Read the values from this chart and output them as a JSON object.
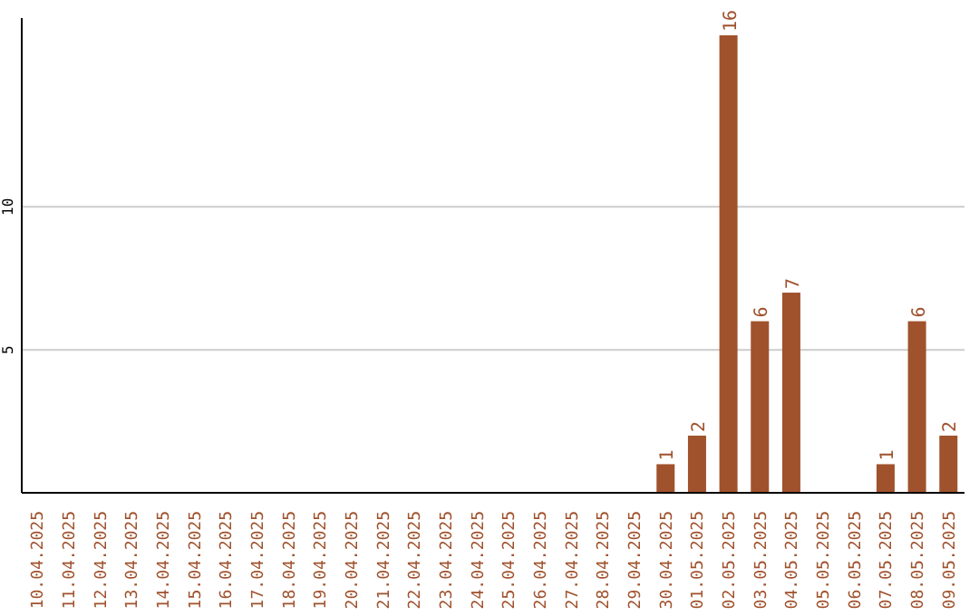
{
  "chart_data": {
    "type": "bar",
    "categories": [
      "10.04.2025",
      "11.04.2025",
      "12.04.2025",
      "13.04.2025",
      "14.04.2025",
      "15.04.2025",
      "16.04.2025",
      "17.04.2025",
      "18.04.2025",
      "19.04.2025",
      "20.04.2025",
      "21.04.2025",
      "22.04.2025",
      "23.04.2025",
      "24.04.2025",
      "25.04.2025",
      "26.04.2025",
      "27.04.2025",
      "28.04.2025",
      "29.04.2025",
      "30.04.2025",
      "01.05.2025",
      "02.05.2025",
      "03.05.2025",
      "04.05.2025",
      "05.05.2025",
      "06.05.2025",
      "07.05.2025",
      "08.05.2025",
      "09.05.2025"
    ],
    "values": [
      0,
      0,
      0,
      0,
      0,
      0,
      0,
      0,
      0,
      0,
      0,
      0,
      0,
      0,
      0,
      0,
      0,
      0,
      0,
      0,
      1,
      2,
      16,
      6,
      7,
      0,
      0,
      1,
      6,
      2
    ],
    "value_labels": [
      null,
      null,
      null,
      null,
      null,
      null,
      null,
      null,
      null,
      null,
      null,
      null,
      null,
      null,
      null,
      null,
      null,
      null,
      null,
      null,
      "1",
      "2",
      "16",
      "6",
      "7",
      null,
      null,
      "1",
      "6",
      "2"
    ],
    "color": "#a0522d",
    "ylim": [
      0,
      16.6
    ],
    "yticks": [
      5,
      10
    ],
    "grid": "y"
  }
}
